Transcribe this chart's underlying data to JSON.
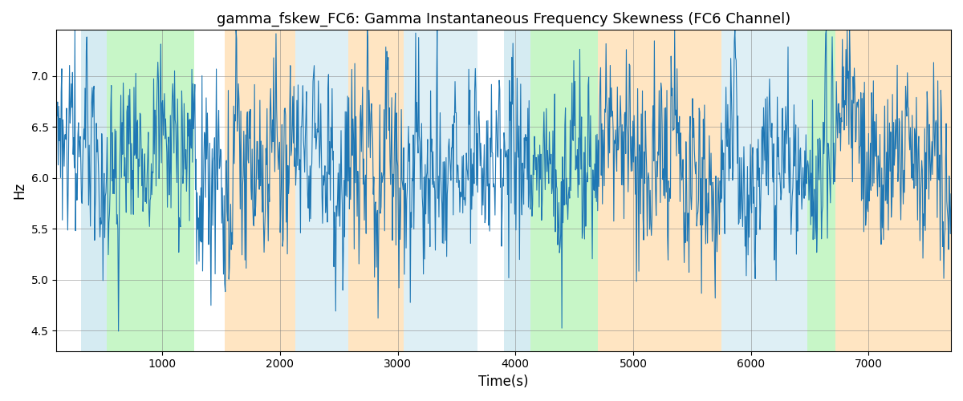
{
  "title": "gamma_fskew_FC6: Gamma Instantaneous Frequency Skewness (FC6 Channel)",
  "xlabel": "Time(s)",
  "ylabel": "Hz",
  "line_color": "#1f77b4",
  "line_width": 0.8,
  "ylim": [
    4.3,
    7.45
  ],
  "xlim": [
    100,
    7700
  ],
  "bg_regions": [
    {
      "xstart": 310,
      "xend": 530,
      "color": "#add8e6",
      "alpha": 0.5
    },
    {
      "xstart": 530,
      "xend": 1270,
      "color": "#90ee90",
      "alpha": 0.5
    },
    {
      "xstart": 1530,
      "xend": 2130,
      "color": "#ffd59a",
      "alpha": 0.6
    },
    {
      "xstart": 2130,
      "xend": 2580,
      "color": "#add8e6",
      "alpha": 0.4
    },
    {
      "xstart": 2580,
      "xend": 3050,
      "color": "#ffd59a",
      "alpha": 0.6
    },
    {
      "xstart": 3050,
      "xend": 3680,
      "color": "#add8e6",
      "alpha": 0.4
    },
    {
      "xstart": 3900,
      "xend": 4130,
      "color": "#add8e6",
      "alpha": 0.5
    },
    {
      "xstart": 4130,
      "xend": 4700,
      "color": "#90ee90",
      "alpha": 0.5
    },
    {
      "xstart": 4700,
      "xend": 5750,
      "color": "#ffd59a",
      "alpha": 0.6
    },
    {
      "xstart": 5750,
      "xend": 6480,
      "color": "#add8e6",
      "alpha": 0.4
    },
    {
      "xstart": 6480,
      "xend": 6720,
      "color": "#90ee90",
      "alpha": 0.5
    },
    {
      "xstart": 6720,
      "xend": 7700,
      "color": "#ffd59a",
      "alpha": 0.6
    }
  ],
  "n_points": 1500,
  "t_start": 100,
  "t_end": 7700,
  "mean_val": 6.15,
  "noise_scale": 0.35,
  "fast_noise_scale": 0.25,
  "mean_reversion": 0.04
}
